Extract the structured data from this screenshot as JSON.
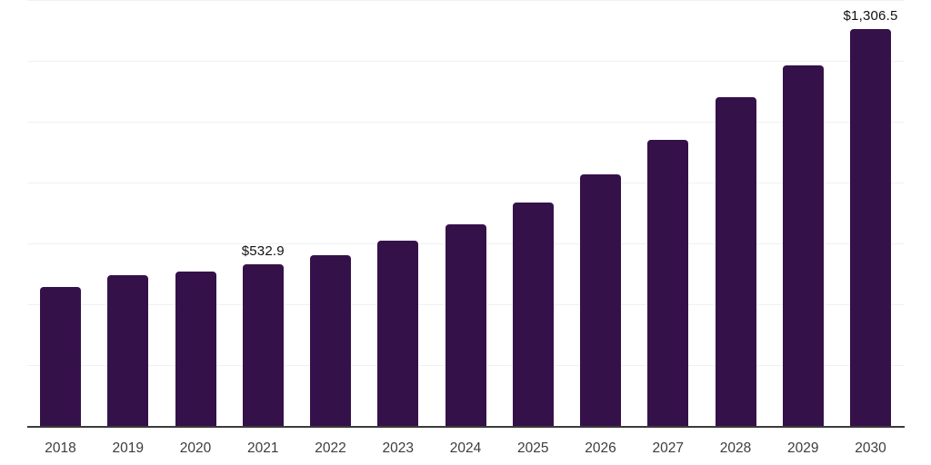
{
  "chart_data": {
    "type": "bar",
    "title": "",
    "xlabel": "",
    "ylabel": "",
    "categories": [
      "2018",
      "2019",
      "2020",
      "2021",
      "2022",
      "2023",
      "2024",
      "2025",
      "2026",
      "2027",
      "2028",
      "2029",
      "2030"
    ],
    "values": [
      459.8,
      498.5,
      510.4,
      532.9,
      564.2,
      612.0,
      665.7,
      737.3,
      829.9,
      943.3,
      1083.6,
      1188.1,
      1306.5
    ],
    "data_labels": [
      {
        "index": 3,
        "text": "$532.9"
      },
      {
        "index": 12,
        "text": "$1,306.5"
      }
    ],
    "ylim": [
      0,
      1400
    ],
    "gridline_step": 200,
    "grid": true,
    "legend": false,
    "y_axis_tick_labels_visible": false,
    "colors": {
      "bar": "#35114A",
      "axis_line": "#3B3B3B",
      "gridline": "#F1F1F1",
      "tick_label": "#3D3D3D",
      "data_label": "#111111",
      "background": "#FFFFFF"
    }
  }
}
